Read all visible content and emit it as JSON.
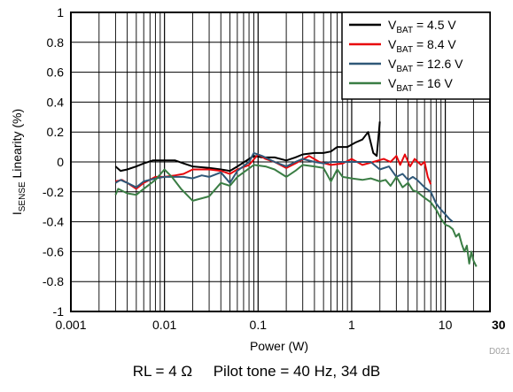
{
  "chart_data": {
    "type": "line",
    "x_scale": "log",
    "xlim": [
      0.001,
      30
    ],
    "ylim": [
      -1,
      1
    ],
    "xlabel": "Power (W)",
    "ylabel": {
      "main": "I",
      "sub": "SENSE",
      "rest": " Linearity (%)"
    },
    "x_ticks": [
      "0.001",
      "0.01",
      "0.1",
      "1",
      "10",
      "30"
    ],
    "y_ticks": [
      "1",
      "0.8",
      "0.6",
      "0.4",
      "0.2",
      "0",
      "-0.2",
      "-0.4",
      "-0.6",
      "-0.8",
      "-1"
    ],
    "grid": true,
    "legend": "top-right",
    "series": [
      {
        "name": {
          "pre": "V",
          "sub": "BAT",
          "post": " = 4.5 V"
        },
        "color": "#000000",
        "points": [
          [
            0.003,
            -0.03
          ],
          [
            0.0034,
            -0.06
          ],
          [
            0.004,
            -0.05
          ],
          [
            0.005,
            -0.03
          ],
          [
            0.006,
            -0.01
          ],
          [
            0.0075,
            0.01
          ],
          [
            0.01,
            0.01
          ],
          [
            0.013,
            0.01
          ],
          [
            0.016,
            -0.01
          ],
          [
            0.02,
            -0.03
          ],
          [
            0.03,
            -0.04
          ],
          [
            0.04,
            -0.05
          ],
          [
            0.05,
            -0.06
          ],
          [
            0.06,
            -0.03
          ],
          [
            0.08,
            0.02
          ],
          [
            0.09,
            0.04
          ],
          [
            0.11,
            0.03
          ],
          [
            0.15,
            0.03
          ],
          [
            0.2,
            0.01
          ],
          [
            0.25,
            0.03
          ],
          [
            0.3,
            0.05
          ],
          [
            0.4,
            0.06
          ],
          [
            0.5,
            0.06
          ],
          [
            0.6,
            0.07
          ],
          [
            0.7,
            0.1
          ],
          [
            0.9,
            0.1
          ],
          [
            1.1,
            0.13
          ],
          [
            1.3,
            0.15
          ],
          [
            1.5,
            0.2
          ],
          [
            1.7,
            0.06
          ],
          [
            1.85,
            0.04
          ],
          [
            2.0,
            0.27
          ]
        ]
      },
      {
        "name": {
          "pre": "V",
          "sub": "BAT",
          "post": " = 8.4 V"
        },
        "color": "#e8080d",
        "points": [
          [
            0.003,
            -0.13
          ],
          [
            0.0035,
            -0.12
          ],
          [
            0.004,
            -0.14
          ],
          [
            0.005,
            -0.18
          ],
          [
            0.006,
            -0.14
          ],
          [
            0.008,
            -0.1
          ],
          [
            0.01,
            -0.1
          ],
          [
            0.013,
            -0.09
          ],
          [
            0.016,
            -0.08
          ],
          [
            0.02,
            -0.05
          ],
          [
            0.03,
            -0.05
          ],
          [
            0.04,
            -0.06
          ],
          [
            0.05,
            -0.08
          ],
          [
            0.06,
            -0.05
          ],
          [
            0.08,
            -0.02
          ],
          [
            0.1,
            0.05
          ],
          [
            0.12,
            0.02
          ],
          [
            0.15,
            0.0
          ],
          [
            0.2,
            -0.04
          ],
          [
            0.25,
            -0.01
          ],
          [
            0.35,
            0.04
          ],
          [
            0.45,
            0.0
          ],
          [
            0.6,
            -0.02
          ],
          [
            0.8,
            -0.01
          ],
          [
            1.0,
            0.02
          ],
          [
            1.3,
            -0.02
          ],
          [
            1.7,
            0.0
          ],
          [
            2.2,
            0.02
          ],
          [
            2.6,
            0.0
          ],
          [
            3.0,
            0.04
          ],
          [
            3.3,
            -0.02
          ],
          [
            3.7,
            0.05
          ],
          [
            4.2,
            -0.03
          ],
          [
            4.7,
            0.02
          ],
          [
            5.5,
            -0.02
          ],
          [
            6.0,
            0.0
          ],
          [
            6.5,
            -0.1
          ],
          [
            7.0,
            -0.15
          ]
        ]
      },
      {
        "name": {
          "pre": "V",
          "sub": "BAT",
          "post": " = 12.6 V"
        },
        "color": "#2f5878",
        "points": [
          [
            0.003,
            -0.14
          ],
          [
            0.0034,
            -0.12
          ],
          [
            0.004,
            -0.14
          ],
          [
            0.005,
            -0.17
          ],
          [
            0.006,
            -0.13
          ],
          [
            0.008,
            -0.11
          ],
          [
            0.01,
            -0.1
          ],
          [
            0.013,
            -0.1
          ],
          [
            0.016,
            -0.1
          ],
          [
            0.02,
            -0.11
          ],
          [
            0.025,
            -0.09
          ],
          [
            0.03,
            -0.1
          ],
          [
            0.04,
            -0.07
          ],
          [
            0.05,
            -0.14
          ],
          [
            0.06,
            -0.06
          ],
          [
            0.08,
            0.0
          ],
          [
            0.09,
            0.06
          ],
          [
            0.11,
            0.04
          ],
          [
            0.15,
            0.0
          ],
          [
            0.2,
            -0.03
          ],
          [
            0.25,
            0.0
          ],
          [
            0.3,
            0.02
          ],
          [
            0.4,
            0.0
          ],
          [
            0.5,
            -0.01
          ],
          [
            0.6,
            0.0
          ],
          [
            0.8,
            0.0
          ],
          [
            1.0,
            0.0
          ],
          [
            1.3,
            0.0
          ],
          [
            1.6,
            0.0
          ],
          [
            2.0,
            -0.05
          ],
          [
            2.5,
            -0.03
          ],
          [
            3.0,
            -0.1
          ],
          [
            3.5,
            -0.08
          ],
          [
            4.0,
            -0.12
          ],
          [
            4.5,
            -0.1
          ],
          [
            5.0,
            -0.12
          ],
          [
            6.0,
            -0.17
          ],
          [
            7.0,
            -0.2
          ],
          [
            8.0,
            -0.28
          ],
          [
            9.0,
            -0.32
          ],
          [
            10.0,
            -0.35
          ],
          [
            11.0,
            -0.38
          ],
          [
            12.0,
            -0.4
          ]
        ]
      },
      {
        "name": {
          "pre": "V",
          "sub": "BAT",
          "post": " = 16 V"
        },
        "color": "#3a7d44",
        "points": [
          [
            0.003,
            -0.22
          ],
          [
            0.0032,
            -0.18
          ],
          [
            0.004,
            -0.21
          ],
          [
            0.005,
            -0.22
          ],
          [
            0.006,
            -0.18
          ],
          [
            0.008,
            -0.12
          ],
          [
            0.01,
            -0.05
          ],
          [
            0.012,
            -0.1
          ],
          [
            0.015,
            -0.18
          ],
          [
            0.02,
            -0.26
          ],
          [
            0.03,
            -0.23
          ],
          [
            0.04,
            -0.14
          ],
          [
            0.05,
            -0.16
          ],
          [
            0.06,
            -0.1
          ],
          [
            0.07,
            -0.07
          ],
          [
            0.09,
            -0.02
          ],
          [
            0.12,
            -0.03
          ],
          [
            0.15,
            -0.05
          ],
          [
            0.2,
            -0.1
          ],
          [
            0.25,
            -0.06
          ],
          [
            0.3,
            -0.02
          ],
          [
            0.4,
            -0.03
          ],
          [
            0.5,
            -0.04
          ],
          [
            0.6,
            -0.13
          ],
          [
            0.7,
            -0.05
          ],
          [
            0.8,
            -0.1
          ],
          [
            1.0,
            -0.11
          ],
          [
            1.3,
            -0.12
          ],
          [
            1.6,
            -0.11
          ],
          [
            2.0,
            -0.13
          ],
          [
            2.3,
            -0.12
          ],
          [
            2.6,
            -0.16
          ],
          [
            3.0,
            -0.1
          ],
          [
            3.5,
            -0.17
          ],
          [
            4.0,
            -0.14
          ],
          [
            4.5,
            -0.19
          ],
          [
            5.0,
            -0.2
          ],
          [
            6.0,
            -0.24
          ],
          [
            7.0,
            -0.27
          ],
          [
            8.0,
            -0.32
          ],
          [
            9.0,
            -0.38
          ],
          [
            10.0,
            -0.42
          ],
          [
            11.0,
            -0.43
          ],
          [
            12.0,
            -0.45
          ],
          [
            13.0,
            -0.5
          ],
          [
            14.0,
            -0.48
          ],
          [
            15.0,
            -0.55
          ],
          [
            16.0,
            -0.6
          ],
          [
            17.0,
            -0.56
          ],
          [
            18.0,
            -0.68
          ],
          [
            19.0,
            -0.6
          ],
          [
            20.0,
            -0.66
          ],
          [
            21.5,
            -0.7
          ]
        ]
      }
    ]
  },
  "caption": {
    "rl": "RL = 4 Ω",
    "pilot": "Pilot tone = 40 Hz, 34 dB"
  },
  "figure_id": "D021"
}
